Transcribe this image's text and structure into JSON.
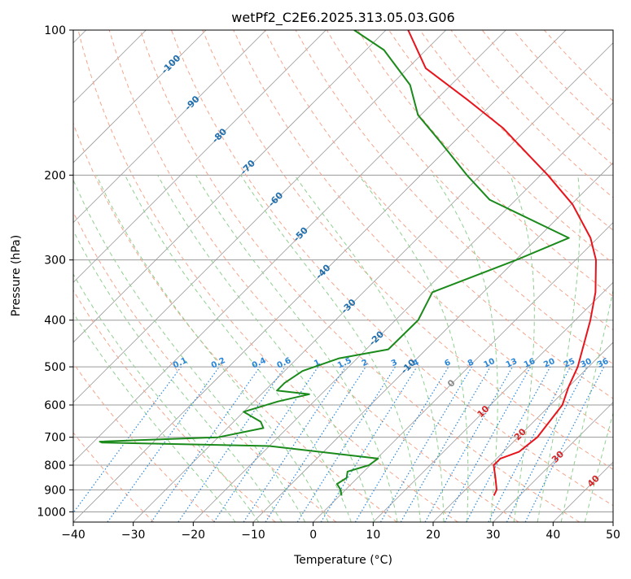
{
  "chart_data": {
    "type": "line",
    "title": "wetPf2_C2E6.2025.313.05.03.G06",
    "xlabel": "Temperature (°C)",
    "ylabel": "Pressure (hPa)",
    "xlim": [
      -40,
      50
    ],
    "ylim": [
      1050,
      100
    ],
    "y_scale": "log",
    "skew": "skew-T",
    "grid": true,
    "x_ticks": [
      -40,
      -30,
      -20,
      -10,
      0,
      10,
      20,
      30,
      40,
      50
    ],
    "x_tick_labels": [
      "−40",
      "−30",
      "−20",
      "−10",
      "0",
      "10",
      "20",
      "30",
      "40",
      "50"
    ],
    "y_ticks": [
      1000,
      900,
      800,
      700,
      600,
      500,
      400,
      300,
      200,
      100
    ],
    "y_tick_labels": [
      "1000",
      "900",
      "800",
      "700",
      "600",
      "500",
      "400",
      "300",
      "200",
      "100"
    ],
    "series": [
      {
        "color": "#e8141c",
        "points": [
          [
            25.7,
            925
          ],
          [
            25.2,
            900
          ],
          [
            23.0,
            850
          ],
          [
            20.6,
            800
          ],
          [
            20.6,
            775
          ],
          [
            22.6,
            750
          ],
          [
            23.2,
            700
          ],
          [
            22.0,
            600
          ],
          [
            20.0,
            550
          ],
          [
            18.2,
            500
          ],
          [
            12.5,
            400
          ],
          [
            8.7,
            350
          ],
          [
            3.4,
            300
          ],
          [
            -1.2,
            270
          ],
          [
            -9.8,
            230
          ],
          [
            -18.8,
            200
          ],
          [
            -26.0,
            180
          ],
          [
            -34.0,
            160
          ],
          [
            -44.5,
            140
          ],
          [
            -57.0,
            120
          ],
          [
            -66.3,
            100
          ]
        ]
      },
      {
        "color": "#1a8a1a",
        "points": [
          [
            0.3,
            925
          ],
          [
            -0.8,
            900
          ],
          [
            -2.4,
            875
          ],
          [
            -1.8,
            850
          ],
          [
            -2.7,
            825
          ],
          [
            -0.2,
            800
          ],
          [
            0.2,
            775
          ],
          [
            -20.0,
            730
          ],
          [
            -48.5,
            718
          ],
          [
            -49.0,
            715
          ],
          [
            -30.0,
            700
          ],
          [
            -24.0,
            670
          ],
          [
            -25.5,
            650
          ],
          [
            -30.0,
            620
          ],
          [
            -26.0,
            590
          ],
          [
            -22.0,
            570
          ],
          [
            -28.0,
            560
          ],
          [
            -28.0,
            540
          ],
          [
            -27.0,
            510
          ],
          [
            -23.0,
            480
          ],
          [
            -16.3,
            460
          ],
          [
            -16.2,
            400
          ],
          [
            -18.5,
            350
          ],
          [
            -9.9,
            300
          ],
          [
            -4.8,
            270
          ],
          [
            -24.4,
            225
          ],
          [
            -32.3,
            200
          ],
          [
            -42.5,
            170
          ],
          [
            -50.5,
            150
          ],
          [
            -56.8,
            130
          ],
          [
            -67.0,
            110
          ],
          [
            -75.3,
            100
          ]
        ]
      }
    ],
    "annotations": {
      "dry_adiabat_labels": [
        "-100",
        "-90",
        "-80",
        "-70",
        "-60",
        "-50",
        "-40",
        "-30",
        "-20",
        "-10",
        "0",
        "10",
        "20",
        "30",
        "40"
      ],
      "mixing_ratio_labels": [
        "0.1",
        "0.2",
        "0.4",
        "0.6",
        "1",
        "1.5",
        "2",
        "3",
        "4",
        "6",
        "8",
        "10",
        "13",
        "16",
        "20",
        "25",
        "30",
        "36"
      ]
    },
    "colors": {
      "isotherm": "#9a9a9a",
      "dry_adiabat": "#f4a58c",
      "moist_adiabat": "#8fcf8f",
      "mixing_ratio": "#2a86d8",
      "cold_label": "#1f6fae",
      "warm_label": "#d62728",
      "zero_label": "#8a8a8a",
      "freezing_curve": "#c8a886"
    }
  }
}
